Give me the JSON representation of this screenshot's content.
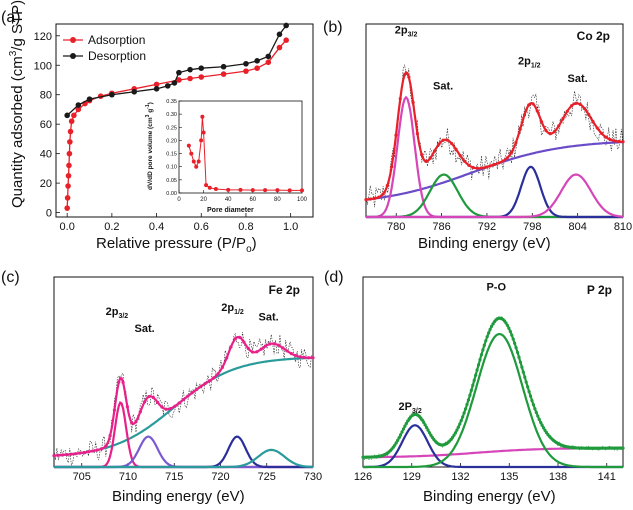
{
  "colors": {
    "red": "#e8202a",
    "black": "#1a1a1a",
    "green": "#1f9a3c",
    "magenta": "#d646b8",
    "navy": "#2a2f9a",
    "purple": "#6a4cc8",
    "teal": "#2a9a9a",
    "pink": "#e8208a",
    "purple2": "#7a5ad0",
    "noise": "#222222"
  },
  "chart_data": [
    {
      "panel": "(a)",
      "type": "line",
      "xlabel_main": "Relative pressure (P/P",
      "xlabel_sub": "o",
      "xlabel_close": ")",
      "ylabel": "Quantity adsorbed (cm",
      "ylabel_sup": "3",
      "ylabel_rest": "/g STP)",
      "xlim": [
        -0.05,
        1.1
      ],
      "ylim": [
        -3,
        128
      ],
      "xticks": [
        "0.0",
        "0.2",
        "0.4",
        "0.6",
        "0.8",
        "1.0"
      ],
      "xtick_values": [
        0,
        0.2,
        0.4,
        0.6,
        0.8,
        1.0
      ],
      "yticks": [
        "0",
        "20",
        "40",
        "60",
        "80",
        "100",
        "120"
      ],
      "ytick_values": [
        0,
        20,
        40,
        60,
        80,
        100,
        120
      ],
      "legend": [
        "Adsorption",
        "Desorption"
      ],
      "series": [
        {
          "name": "Adsorption",
          "x": [
            0.0,
            0.002,
            0.004,
            0.006,
            0.008,
            0.01,
            0.012,
            0.015,
            0.02,
            0.03,
            0.05,
            0.08,
            0.1,
            0.15,
            0.2,
            0.3,
            0.4,
            0.5,
            0.55,
            0.6,
            0.7,
            0.8,
            0.85,
            0.9,
            0.95,
            0.98
          ],
          "y": [
            3,
            10,
            18,
            25,
            32,
            40,
            48,
            55,
            62,
            66,
            70,
            74,
            76,
            79,
            81,
            84,
            87,
            90,
            91,
            92,
            94,
            96,
            98,
            102,
            112,
            117
          ]
        },
        {
          "name": "Desorption",
          "x": [
            0.98,
            0.95,
            0.9,
            0.85,
            0.8,
            0.7,
            0.6,
            0.55,
            0.5,
            0.48,
            0.45,
            0.4,
            0.3,
            0.2,
            0.1,
            0.05,
            0.0
          ],
          "y": [
            127,
            121,
            106,
            103,
            101,
            99,
            98,
            97,
            95,
            88,
            86,
            84,
            82,
            80,
            77,
            73,
            66
          ]
        }
      ],
      "inset": {
        "xlabel": "Pore diameter",
        "ylabel": "dV/dD pore volume (cm",
        "ylabel_sup": "3",
        "ylabel_rest": " g",
        "ylabel_sup2": "-1",
        "ylabel_close": ")",
        "xlim": [
          0,
          100
        ],
        "ylim": [
          0,
          0.35
        ],
        "xticks": [
          "0",
          "20",
          "40",
          "60",
          "80",
          "100"
        ],
        "xtick_values": [
          0,
          20,
          40,
          60,
          80,
          100
        ],
        "yticks": [
          "0.00",
          "0.05",
          "0.10",
          "0.15",
          "0.20",
          "0.25",
          "0.30",
          "0.35"
        ],
        "ytick_values": [
          0,
          0.05,
          0.1,
          0.15,
          0.2,
          0.25,
          0.3,
          0.35
        ],
        "x": [
          8,
          10,
          12,
          14,
          16,
          18,
          19,
          20,
          22,
          25,
          30,
          40,
          50,
          60,
          70,
          80,
          90,
          100
        ],
        "y": [
          0.18,
          0.15,
          0.12,
          0.1,
          0.12,
          0.2,
          0.29,
          0.23,
          0.03,
          0.02,
          0.015,
          0.012,
          0.012,
          0.011,
          0.011,
          0.011,
          0.01,
          0.01
        ]
      }
    },
    {
      "panel": "(b)",
      "type": "line",
      "title": "Co 2p",
      "xlabel": "Binding energy (eV)",
      "xlim": [
        776,
        810
      ],
      "ylim": [
        0,
        1
      ],
      "xticks": [
        "780",
        "786",
        "792",
        "798",
        "804",
        "810"
      ],
      "xtick_values": [
        780,
        786,
        792,
        798,
        804,
        810
      ],
      "annotations": [
        {
          "text": "2p",
          "sub": "3/2",
          "x": 781.3,
          "y": 0.95
        },
        {
          "text": "Sat.",
          "x": 786.2,
          "y": 0.66
        },
        {
          "text": "2p",
          "sub": "1/2",
          "x": 797.6,
          "y": 0.79
        },
        {
          "text": "Sat.",
          "x": 804.0,
          "y": 0.7
        }
      ]
    },
    {
      "panel": "(c)",
      "type": "line",
      "title": "Fe 2p",
      "xlabel": "Binding energy (eV)",
      "xlim": [
        702,
        730
      ],
      "ylim": [
        0,
        1
      ],
      "xticks": [
        "705",
        "710",
        "715",
        "720",
        "725",
        "730"
      ],
      "xtick_values": [
        705,
        710,
        715,
        720,
        725,
        730
      ],
      "annotations": [
        {
          "text": "2p",
          "sub": "3/2",
          "x": 708.8,
          "y": 0.8
        },
        {
          "text": "Sat.",
          "x": 711.8,
          "y": 0.71
        },
        {
          "text": "2p",
          "sub": "1/2",
          "x": 721.3,
          "y": 0.82
        },
        {
          "text": "Sat.",
          "x": 725.2,
          "y": 0.77
        }
      ]
    },
    {
      "panel": "(d)",
      "type": "line",
      "title": "P 2p",
      "xlabel": "Binding energy (eV)",
      "xlim": [
        126,
        142
      ],
      "ylim": [
        0,
        1
      ],
      "xticks": [
        "126",
        "129",
        "132",
        "135",
        "138",
        "141"
      ],
      "xtick_values": [
        126,
        129,
        132,
        135,
        138,
        141
      ],
      "annotations": [
        {
          "text": "2P",
          "sub": "3/2",
          "x": 128.9,
          "y": 0.3
        },
        {
          "text": "P-O",
          "x": 134.2,
          "y": 0.93
        }
      ]
    }
  ]
}
